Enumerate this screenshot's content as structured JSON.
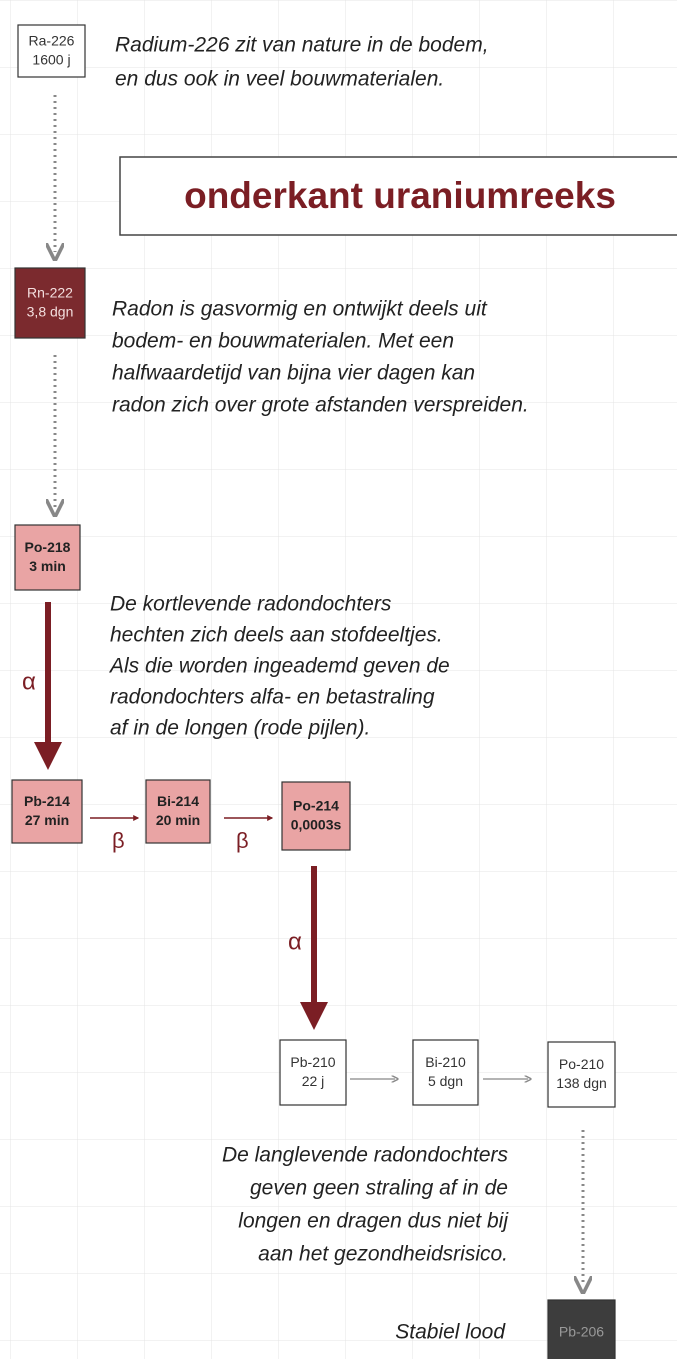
{
  "title": "onderkant uraniumreeks",
  "nodes": [
    {
      "label": "Ra-226",
      "halflife": "1600 j"
    },
    {
      "label": "Rn-222",
      "halflife": "3,8 dgn"
    },
    {
      "label": "Po-218",
      "halflife": "3 min"
    },
    {
      "label": "Pb-214",
      "halflife": "27 min"
    },
    {
      "label": "Bi-214",
      "halflife": "20 min"
    },
    {
      "label": "Po-214",
      "halflife": "0,0003s"
    },
    {
      "label": "Pb-210",
      "halflife": "22 j"
    },
    {
      "label": "Bi-210",
      "halflife": "5 dgn"
    },
    {
      "label": "Po-210",
      "halflife": "138 dgn"
    },
    {
      "label": "Pb-206"
    }
  ],
  "decays": {
    "alpha": "α",
    "beta": "β"
  },
  "notes": [
    [
      "Radium-226 zit van nature in de bodem,",
      "en dus ook in veel bouwmaterialen."
    ],
    [
      "Radon is gasvormig en ontwijkt deels uit",
      "bodem- en bouwmaterialen. Met een",
      "halfwaardetijd van bijna vier dagen kan",
      "radon zich over grote afstanden verspreiden."
    ],
    [
      "De kortlevende radondochters",
      "hechten zich deels aan stofdeeltjes.",
      "Als die worden ingeademd geven de",
      "radondochters alfa- en betastraling",
      "af in de longen (rode pijlen)."
    ],
    [
      "De langlevende radondochters",
      "geven geen straling af in de",
      "longen en dragen dus niet bij",
      "aan het gezondheidsrisico."
    ]
  ],
  "stable_label": "Stabiel lood"
}
